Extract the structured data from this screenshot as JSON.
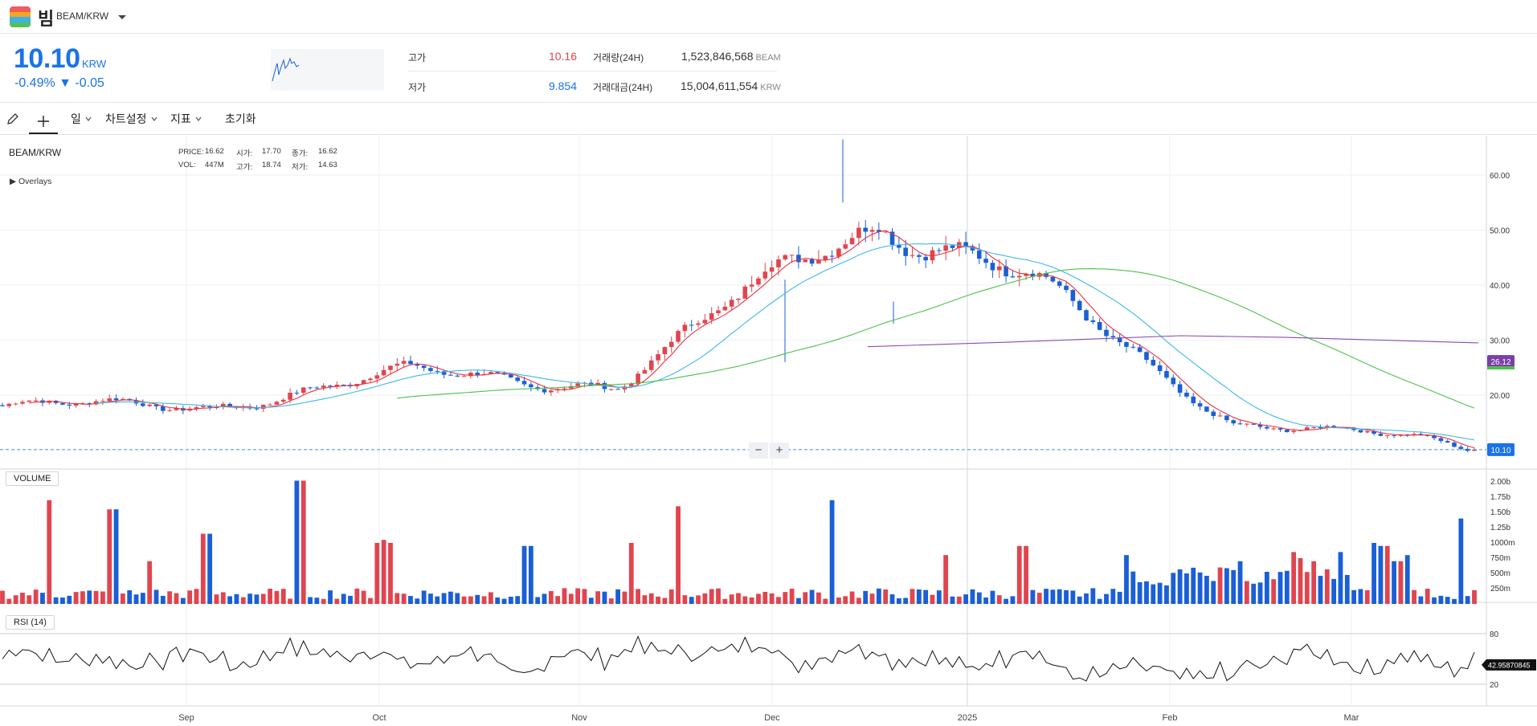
{
  "header": {
    "coin_name": "빔",
    "pair": "BEAM/KRW",
    "price": "10.10",
    "price_unit": "KRW",
    "change": "-0.49% ▼ -0.05"
  },
  "stats": {
    "high_label": "고가",
    "high_value": "10.16",
    "low_label": "저가",
    "low_value": "9.854",
    "volume_label": "거래량(24H)",
    "volume_value": "1,523,846,568",
    "volume_unit": "BEAM",
    "amount_label": "거래대금(24H)",
    "amount_value": "15,004,611,554",
    "amount_unit": "KRW"
  },
  "toolbar": {
    "period": "일",
    "chart_settings": "차트설정",
    "indicators": "지표",
    "reset": "초기화"
  },
  "legend": {
    "pair": "BEAM/KRW",
    "price_label": "PRICE:",
    "price": "16.62",
    "open_label": "시가:",
    "open": "17.70",
    "close_label": "종가:",
    "close": "16.62",
    "vol_label": "VOL:",
    "vol": "447M",
    "high_label": "고가:",
    "high": "18.74",
    "low_label": "저가:",
    "low": "14.63",
    "overlays": "Overlays"
  },
  "panels": {
    "volume": "VOLUME",
    "rsi": "RSI (14)"
  },
  "badges": {
    "current_price": "10.10",
    "ma_long": "26.12",
    "rsi_value": "42.95870845"
  },
  "colors": {
    "up": "#e0454f",
    "down": "#1a5fd6",
    "ma_fast": "#e8333b",
    "ma_mid": "#3db8e8",
    "ma_long": "#4cc24a",
    "ma_long2": "#8a4bb0"
  },
  "chart_data": {
    "type": "candlestick",
    "price_axis_ticks": [
      "60.00",
      "50.00",
      "40.00",
      "30.00",
      "20.00"
    ],
    "price_axis_range": [
      8,
      68
    ],
    "volume_axis_ticks": [
      "2.00b",
      "1.75b",
      "1.50b",
      "1.25b",
      "1000m",
      "750m",
      "500m",
      "250m"
    ],
    "rsi_axis_ticks": [
      "80",
      "20"
    ],
    "x_tick_labels": [
      "Sep",
      "Oct",
      "Nov",
      "Dec",
      "2025",
      "Feb",
      "Mar"
    ],
    "grid": true,
    "close_series_key_points": [
      {
        "date": "Aug",
        "close": 18
      },
      {
        "date": "Sep",
        "close": 18
      },
      {
        "date": "Oct",
        "close": 24
      },
      {
        "date": "Nov",
        "close": 22
      },
      {
        "date": "Dec",
        "close": 47
      },
      {
        "date": "Dec 10",
        "close": 52
      },
      {
        "date": "2025",
        "close": 41
      },
      {
        "date": "Feb",
        "close": 15
      },
      {
        "date": "Mar",
        "close": 12
      },
      {
        "date": "Mar 20",
        "close": 10.1
      }
    ]
  }
}
